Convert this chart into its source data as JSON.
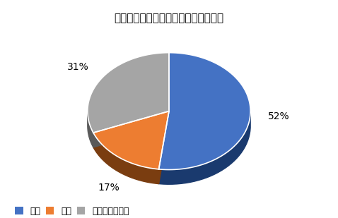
{
  "title": "ハイラックスの乗り心地の満足度調査",
  "slices": [
    52,
    17,
    31
  ],
  "labels": [
    "満足",
    "不満",
    "どちらでもない"
  ],
  "colors": [
    "#4472C4",
    "#ED7D31",
    "#A5A5A5"
  ],
  "dark_colors": [
    "#1a3a6e",
    "#7a3d10",
    "#5a5a5a"
  ],
  "pct_labels": [
    "52%",
    "17%",
    "31%"
  ],
  "startangle": 90,
  "background_color": "#FFFFFF",
  "title_fontsize": 11,
  "legend_fontsize": 9
}
